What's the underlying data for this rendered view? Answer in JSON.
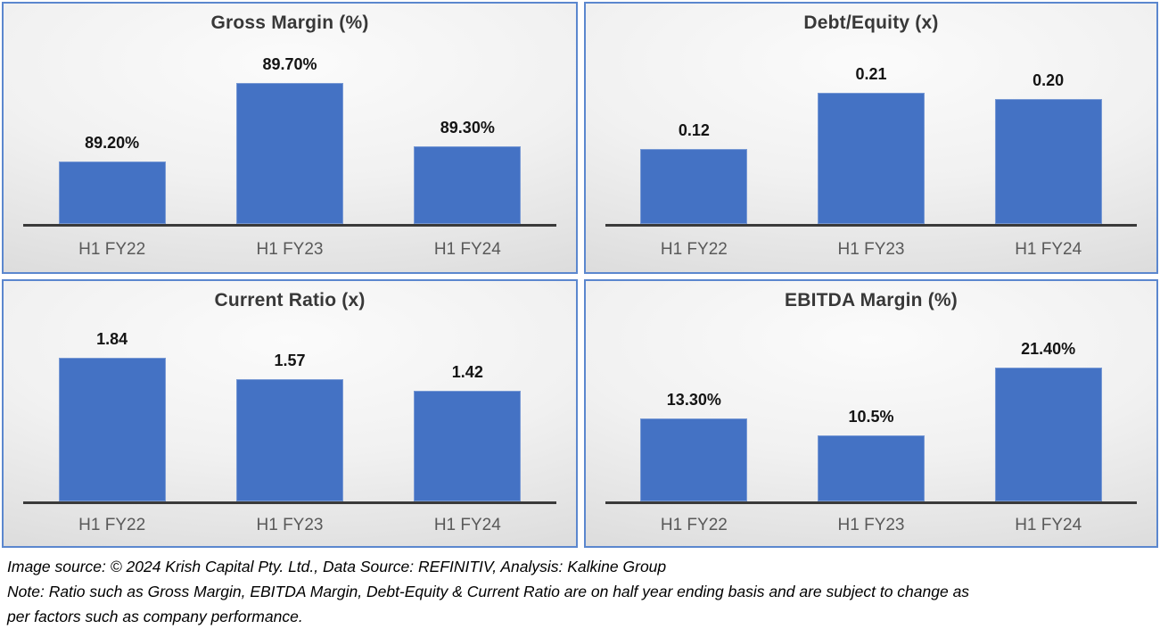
{
  "colors": {
    "bar_fill": "#4472c4",
    "panel_border": "#5b87ce",
    "axis_line": "#3a3a3a",
    "title_text": "#383838",
    "category_text": "#595959",
    "data_label_text": "#141414"
  },
  "chart_data": [
    {
      "type": "bar",
      "title": "Gross Margin (%)",
      "categories": [
        "H1 FY22",
        "H1 FY23",
        "H1 FY24"
      ],
      "values": [
        89.2,
        89.7,
        89.3
      ],
      "data_labels": [
        "89.20%",
        "89.70%",
        "89.30%"
      ],
      "xlabel": "",
      "ylabel": "",
      "ylim": [
        88.8,
        90.0
      ],
      "grid": false,
      "legend": "none"
    },
    {
      "type": "bar",
      "title": "Debt/Equity (x)",
      "categories": [
        "H1 FY22",
        "H1 FY23",
        "H1 FY24"
      ],
      "values": [
        0.12,
        0.21,
        0.2
      ],
      "data_labels": [
        "0.12",
        "0.21",
        "0.20"
      ],
      "xlabel": "",
      "ylabel": "",
      "ylim": [
        0,
        0.3
      ],
      "grid": false,
      "legend": "none"
    },
    {
      "type": "bar",
      "title": "Current Ratio (x)",
      "categories": [
        "H1 FY22",
        "H1 FY23",
        "H1 FY24"
      ],
      "values": [
        1.84,
        1.57,
        1.42
      ],
      "data_labels": [
        "1.84",
        "1.57",
        "1.42"
      ],
      "xlabel": "",
      "ylabel": "",
      "ylim": [
        0,
        2.4
      ],
      "grid": false,
      "legend": "none"
    },
    {
      "type": "bar",
      "title": "EBITDA Margin (%)",
      "categories": [
        "H1 FY22",
        "H1 FY23",
        "H1 FY24"
      ],
      "values": [
        13.3,
        10.5,
        21.4
      ],
      "data_labels": [
        "13.30%",
        "10.5%",
        "21.40%"
      ],
      "xlabel": "",
      "ylabel": "",
      "ylim": [
        0,
        30
      ],
      "grid": false,
      "legend": "none"
    }
  ],
  "footer": {
    "source_line": "Image source: © 2024 Krish Capital Pty. Ltd., Data Source: REFINITIV, Analysis: Kalkine Group",
    "note_line_1": "Note: Ratio such as Gross Margin, EBITDA Margin, Debt-Equity & Current Ratio are on half year ending basis and are subject to change as",
    "note_line_2": "per factors such as company performance."
  }
}
